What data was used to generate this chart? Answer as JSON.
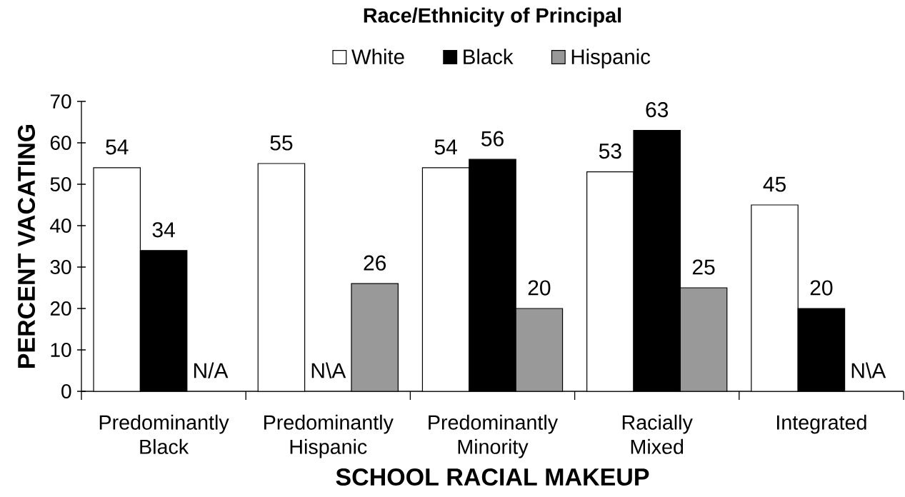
{
  "chart_data": {
    "type": "bar",
    "legend_title": "Race/Ethnicity of Principal",
    "xlabel": "SCHOOL RACIAL MAKEUP",
    "ylabel": "PERCENT VACATING",
    "categories": [
      "Predominantly Black",
      "Predominantly Hispanic",
      "Predominantly Minority",
      "Racially Mixed",
      "Integrated"
    ],
    "series": [
      {
        "name": "White",
        "color": "#ffffff",
        "values": [
          54,
          55,
          54,
          53,
          45
        ],
        "value_labels": [
          "54",
          "55",
          "54",
          "53",
          "45"
        ]
      },
      {
        "name": "Black",
        "color": "#000000",
        "values": [
          34,
          null,
          56,
          63,
          20
        ],
        "value_labels": [
          "34",
          "N\\A",
          "56",
          "63",
          "20"
        ]
      },
      {
        "name": "Hispanic",
        "color": "#999999",
        "values": [
          null,
          26,
          20,
          25,
          null
        ],
        "value_labels": [
          "N/A",
          "26",
          "20",
          "25",
          "N\\A"
        ]
      }
    ],
    "ylim": [
      0,
      70
    ],
    "yticks": [
      0,
      10,
      20,
      30,
      40,
      50,
      60,
      70
    ],
    "legend": "top"
  }
}
